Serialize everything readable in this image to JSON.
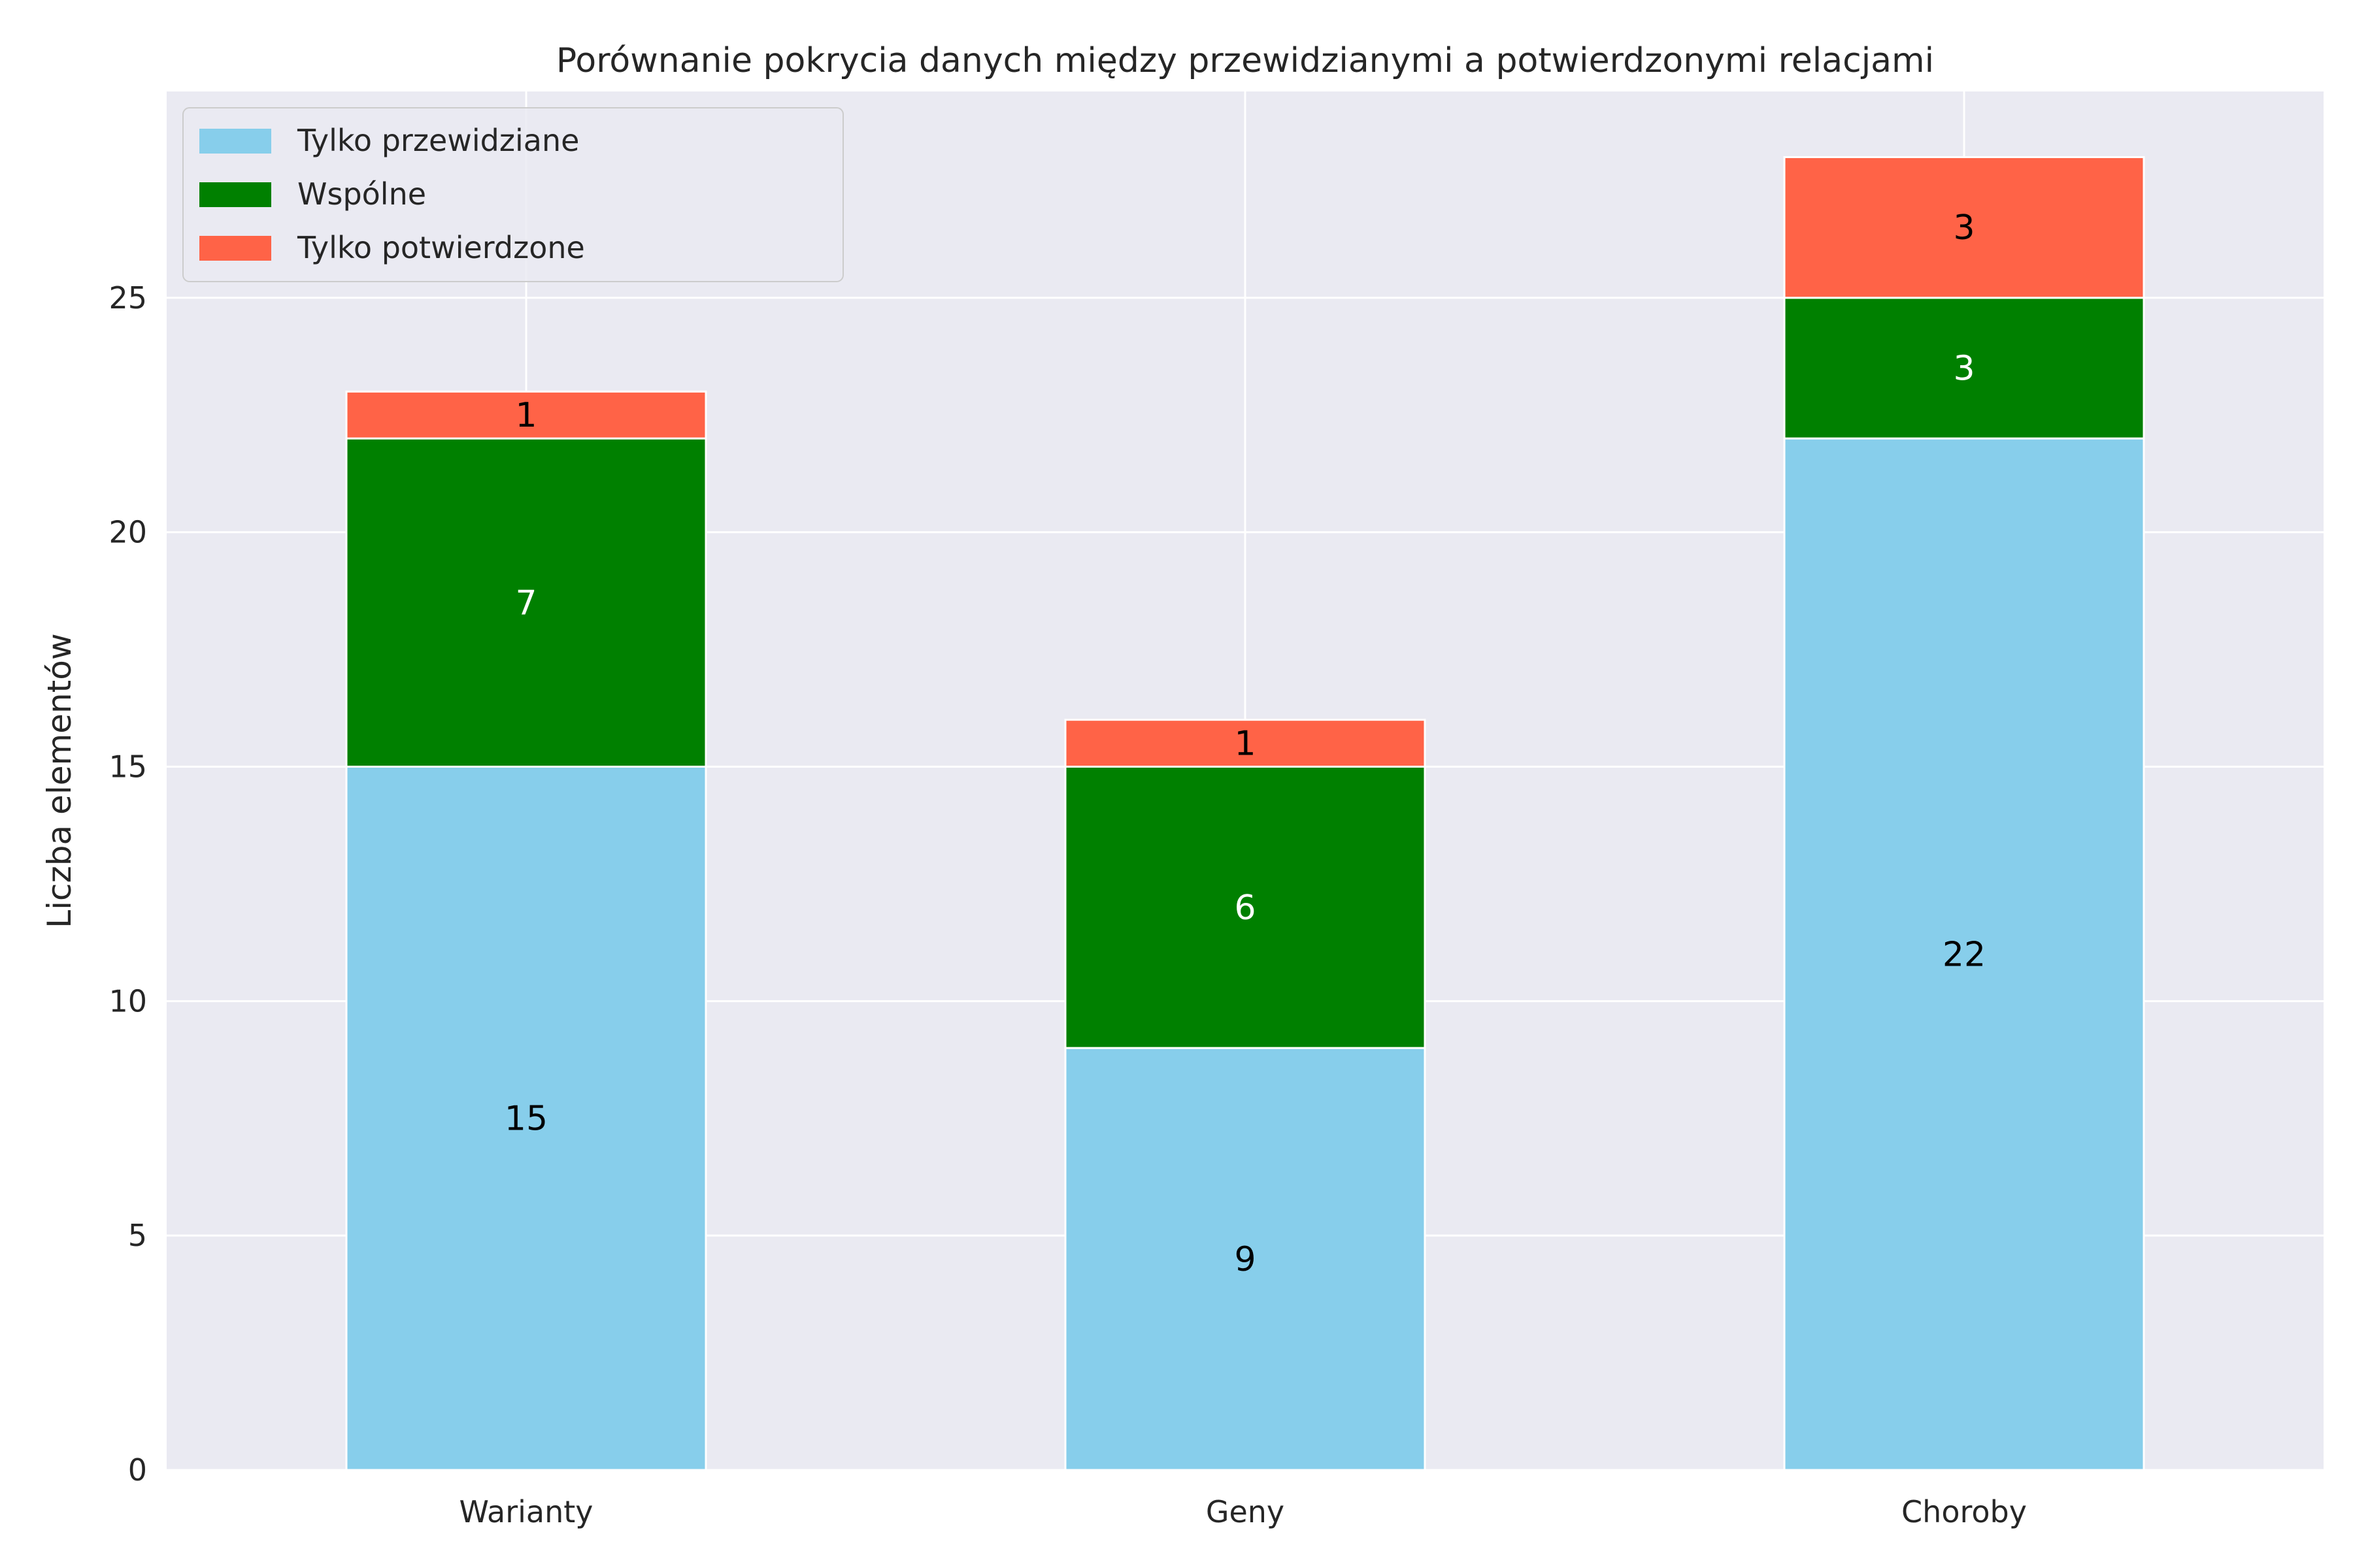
{
  "chart_data": {
    "type": "bar",
    "stacked": true,
    "title": "Porównanie pokrycia danych między przewidzianymi a potwierdzonymi relacjami",
    "xlabel": "",
    "ylabel": "Liczba elementów",
    "categories": [
      "Warianty",
      "Geny",
      "Choroby"
    ],
    "series": [
      {
        "name": "Tylko przewidziane",
        "color": "#87CEEB",
        "label_color": "#000000",
        "values": [
          15,
          9,
          22
        ]
      },
      {
        "name": "Wspólne",
        "color": "#008000",
        "label_color": "#ffffff",
        "values": [
          7,
          6,
          3
        ]
      },
      {
        "name": "Tylko potwierdzone",
        "color": "#FF6347",
        "label_color": "#000000",
        "values": [
          1,
          1,
          3
        ]
      }
    ],
    "ylim": [
      0,
      29.4
    ],
    "yticks": [
      0,
      5,
      10,
      15,
      20,
      25
    ],
    "grid": true,
    "legend_position": "top-left",
    "background_color": "#EAEAF2"
  }
}
